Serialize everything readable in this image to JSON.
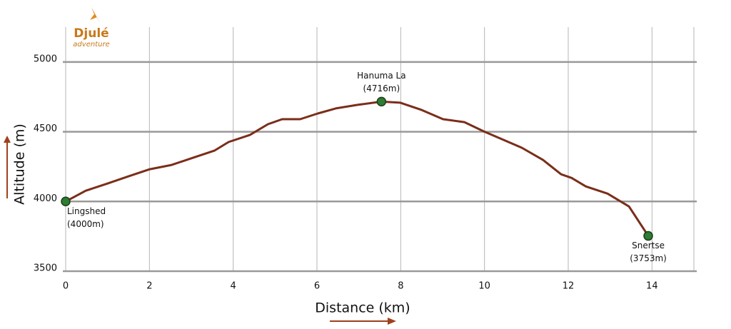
{
  "logo": {
    "name": "Djulé",
    "tagline": "adventure"
  },
  "chart_data": {
    "type": "line",
    "x_label": "Distance (km)",
    "y_label": "Altitude (m)",
    "xlim": [
      0,
      15
    ],
    "xticks": [
      0,
      2,
      4,
      6,
      8,
      10,
      12,
      14
    ],
    "ylim": [
      3500,
      5250
    ],
    "yticks": [
      3500,
      4000,
      4500,
      5000
    ],
    "grid": true,
    "series": [
      {
        "color": "#7a2e1a",
        "x": [
          0,
          0.48,
          0.99,
          1.5,
          2.01,
          2.53,
          3.04,
          3.55,
          3.89,
          4.4,
          4.83,
          5.17,
          5.6,
          6.02,
          6.45,
          6.96,
          7.54,
          7.99,
          8.5,
          9.01,
          9.52,
          9.98,
          10.38,
          10.89,
          11.4,
          11.83,
          12.08,
          12.42,
          12.94,
          13.45,
          13.91
        ],
        "values": [
          4000,
          4077,
          4128,
          4180,
          4231,
          4262,
          4313,
          4364,
          4426,
          4477,
          4554,
          4590,
          4590,
          4631,
          4667,
          4692,
          4716,
          4708,
          4656,
          4590,
          4569,
          4503,
          4451,
          4385,
          4297,
          4195,
          4169,
          4108,
          4056,
          3964,
          3753
        ]
      }
    ],
    "markers": [
      {
        "name": "Lingshed",
        "label": "(4000m)",
        "x": 0,
        "y": 4000
      },
      {
        "name": "Hanuma La",
        "label": "(4716m)",
        "x": 7.54,
        "y": 4716
      },
      {
        "name": "Snertse",
        "label": "(3753m)",
        "x": 13.91,
        "y": 3753
      }
    ],
    "marker_color": "#2e7d32"
  }
}
